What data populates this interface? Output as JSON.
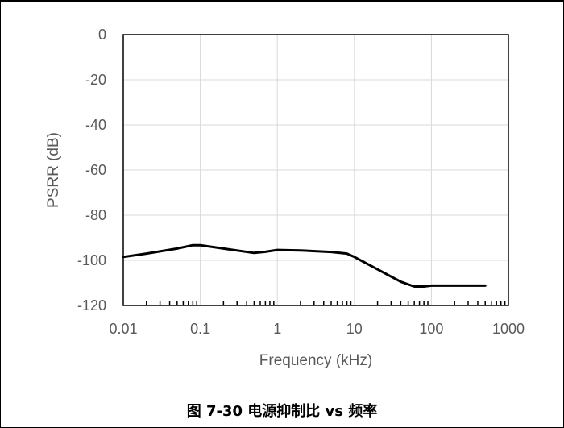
{
  "chart_data": {
    "type": "line",
    "title": "",
    "xlabel": "Frequency (kHz)",
    "ylabel": "PSRR (dB)",
    "x_scale": "log",
    "xlim": [
      0.01,
      1000
    ],
    "ylim": [
      -120,
      0
    ],
    "x_ticks": [
      0.01,
      0.1,
      1,
      10,
      100,
      1000
    ],
    "x_tick_labels": [
      "0.01",
      "0.1",
      "1",
      "10",
      "100",
      "1000"
    ],
    "y_ticks": [
      0,
      -20,
      -40,
      -60,
      -80,
      -100,
      -120
    ],
    "y_tick_labels": [
      "0",
      "-20",
      "-40",
      "-60",
      "-80",
      "-100",
      "-120"
    ],
    "grid": true,
    "legend": "none",
    "line_color": "#000000",
    "series": [
      {
        "x": [
          0.01,
          0.02,
          0.05,
          0.08,
          0.1,
          0.2,
          0.5,
          0.7,
          1,
          2,
          5,
          8,
          10,
          20,
          40,
          60,
          80,
          100,
          200,
          500
        ],
        "y": [
          -98.5,
          -97,
          -94.8,
          -93.3,
          -93.3,
          -94.8,
          -96.7,
          -96.2,
          -95.4,
          -95.6,
          -96.3,
          -97,
          -98.5,
          -104,
          -109.5,
          -111.6,
          -111.6,
          -111.2,
          -111.2,
          -111.2
        ]
      }
    ]
  },
  "caption": "图 7-30 电源抑制比 vs 频率"
}
